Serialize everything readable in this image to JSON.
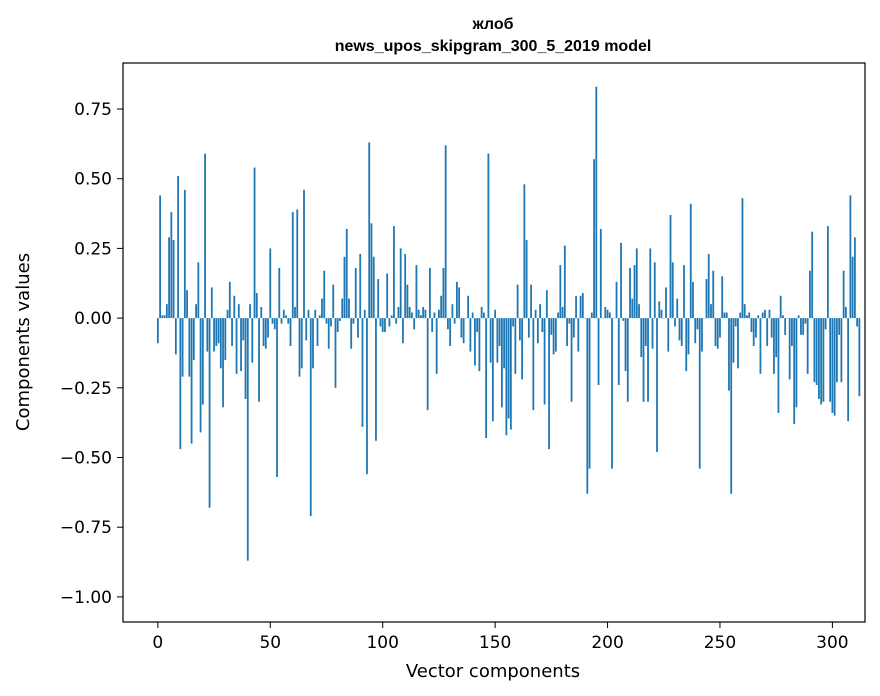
{
  "chart_data": {
    "type": "bar",
    "title": "жлоб",
    "subtitle": "news_upos_skipgram_300_5_2019 model",
    "xlabel": "Vector components",
    "ylabel": "Components values",
    "xlim": [
      -15.5,
      314.5
    ],
    "ylim": [
      -1.09,
      0.915
    ],
    "xticks": [
      0,
      50,
      100,
      150,
      200,
      250,
      300
    ],
    "xtick_labels": [
      "0",
      "50",
      "100",
      "150",
      "200",
      "250",
      "300"
    ],
    "yticks": [
      -1.0,
      -0.75,
      -0.5,
      -0.25,
      0.0,
      0.25,
      0.5,
      0.75
    ],
    "ytick_labels": [
      "−1.00",
      "−0.75",
      "−0.50",
      "−0.25",
      "0.00",
      "0.25",
      "0.50",
      "0.75"
    ],
    "bar_color": "#1f77b4",
    "grid": false,
    "values": [
      -0.09,
      0.44,
      0.01,
      0.01,
      0.05,
      0.29,
      0.38,
      0.28,
      -0.13,
      0.51,
      -0.47,
      -0.21,
      0.46,
      0.1,
      -0.21,
      -0.45,
      -0.15,
      0.05,
      0.2,
      -0.41,
      -0.31,
      0.59,
      -0.12,
      -0.68,
      0.11,
      -0.12,
      -0.1,
      -0.09,
      -0.18,
      -0.32,
      -0.15,
      0.03,
      0.13,
      -0.1,
      0.08,
      -0.2,
      0.05,
      -0.19,
      -0.08,
      -0.29,
      -0.87,
      0.05,
      -0.16,
      0.54,
      0.09,
      -0.3,
      0.04,
      -0.1,
      -0.11,
      -0.07,
      0.25,
      -0.02,
      -0.04,
      -0.57,
      0.18,
      -0.02,
      0.03,
      0.01,
      -0.02,
      -0.1,
      0.38,
      0.04,
      0.39,
      -0.21,
      -0.18,
      0.46,
      -0.08,
      0.03,
      -0.71,
      -0.18,
      0.03,
      -0.1,
      0.01,
      0.07,
      0.17,
      -0.02,
      -0.11,
      -0.03,
      0.12,
      -0.25,
      -0.05,
      -0.01,
      0.07,
      0.22,
      0.32,
      0.07,
      -0.11,
      -0.02,
      0.18,
      -0.07,
      0.23,
      -0.39,
      0.03,
      -0.56,
      0.63,
      0.34,
      0.22,
      -0.44,
      0.14,
      -0.03,
      -0.05,
      -0.05,
      0.16,
      -0.03,
      0.01,
      0.33,
      -0.02,
      0.04,
      0.25,
      -0.09,
      0.23,
      0.12,
      0.04,
      0.02,
      -0.04,
      0.19,
      0.03,
      0.01,
      0.04,
      0.03,
      -0.33,
      0.18,
      -0.05,
      0.02,
      -0.2,
      0.03,
      0.08,
      0.18,
      0.62,
      -0.04,
      -0.1,
      0.05,
      -0.02,
      0.13,
      0.11,
      -0.07,
      -0.09,
      0.0,
      0.08,
      -0.12,
      0.02,
      -0.17,
      -0.05,
      -0.19,
      0.04,
      0.02,
      -0.43,
      0.59,
      -0.16,
      -0.37,
      0.03,
      -0.16,
      -0.1,
      -0.32,
      -0.18,
      -0.42,
      -0.36,
      -0.4,
      -0.03,
      -0.2,
      0.12,
      -0.08,
      -0.22,
      0.48,
      0.28,
      -0.07,
      0.12,
      -0.33,
      0.03,
      -0.09,
      0.05,
      -0.05,
      -0.31,
      0.1,
      -0.47,
      -0.06,
      -0.13,
      -0.12,
      0.02,
      0.19,
      0.04,
      0.26,
      -0.1,
      -0.02,
      -0.3,
      -0.07,
      0.08,
      -0.12,
      0.08,
      0.09,
      0.0,
      -0.63,
      -0.54,
      0.02,
      0.57,
      0.83,
      -0.24,
      0.32,
      0.0,
      0.04,
      0.03,
      0.02,
      -0.54,
      0.0,
      0.13,
      -0.24,
      0.27,
      -0.01,
      -0.19,
      -0.3,
      0.18,
      0.07,
      0.19,
      0.25,
      0.05,
      -0.14,
      -0.3,
      -0.1,
      -0.3,
      0.25,
      -0.11,
      0.2,
      -0.48,
      0.06,
      0.03,
      0.0,
      0.11,
      -0.12,
      0.37,
      0.2,
      -0.03,
      0.07,
      -0.08,
      -0.1,
      0.19,
      -0.19,
      -0.13,
      0.41,
      0.13,
      -0.09,
      -0.04,
      -0.54,
      -0.12,
      0.0,
      0.14,
      0.23,
      0.05,
      0.17,
      -0.1,
      -0.11,
      -0.07,
      0.15,
      0.02,
      0.02,
      -0.26,
      -0.63,
      -0.16,
      -0.03,
      -0.18,
      0.02,
      0.43,
      0.05,
      0.01,
      0.02,
      -0.05,
      -0.1,
      -0.07,
      0.01,
      -0.2,
      0.02,
      0.03,
      -0.1,
      0.03,
      -0.07,
      -0.2,
      -0.14,
      -0.34,
      0.08,
      0.01,
      -0.06,
      0.0,
      -0.22,
      -0.1,
      -0.38,
      -0.32,
      0.01,
      -0.06,
      -0.06,
      -0.02,
      -0.2,
      0.17,
      0.31,
      -0.23,
      -0.24,
      -0.29,
      -0.31,
      -0.3,
      -0.04,
      0.33,
      -0.3,
      -0.34,
      -0.35,
      -0.23,
      -0.06,
      -0.23,
      0.17,
      0.04,
      -0.37,
      0.44,
      0.22,
      0.29,
      -0.03,
      -0.28
    ]
  }
}
